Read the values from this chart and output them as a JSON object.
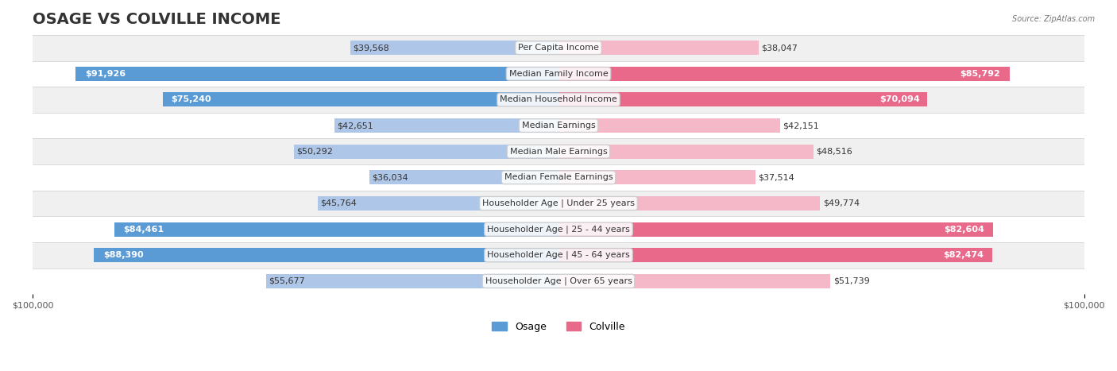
{
  "title": "OSAGE VS COLVILLE INCOME",
  "source": "Source: ZipAtlas.com",
  "categories": [
    "Per Capita Income",
    "Median Family Income",
    "Median Household Income",
    "Median Earnings",
    "Median Male Earnings",
    "Median Female Earnings",
    "Householder Age | Under 25 years",
    "Householder Age | 25 - 44 years",
    "Householder Age | 45 - 64 years",
    "Householder Age | Over 65 years"
  ],
  "osage_values": [
    39568,
    91926,
    75240,
    42651,
    50292,
    36034,
    45764,
    84461,
    88390,
    55677
  ],
  "colville_values": [
    38047,
    85792,
    70094,
    42151,
    48516,
    37514,
    49774,
    82604,
    82474,
    51739
  ],
  "osage_labels": [
    "$39,568",
    "$91,926",
    "$75,240",
    "$42,651",
    "$50,292",
    "$36,034",
    "$45,764",
    "$84,461",
    "$88,390",
    "$55,677"
  ],
  "colville_labels": [
    "$38,047",
    "$85,792",
    "$70,094",
    "$42,151",
    "$48,516",
    "$37,514",
    "$49,774",
    "$82,604",
    "$82,474",
    "$51,739"
  ],
  "max_value": 100000,
  "osage_color_light": "#aec6e8",
  "osage_color_dark": "#5b9bd5",
  "colville_color_light": "#f4b8c8",
  "colville_color_dark": "#e8698a",
  "osage_threshold": 70000,
  "colville_threshold": 70000,
  "bg_row_color": "#f0f0f0",
  "bg_alt_color": "#ffffff",
  "title_fontsize": 14,
  "label_fontsize": 8,
  "category_fontsize": 8,
  "legend_fontsize": 9
}
